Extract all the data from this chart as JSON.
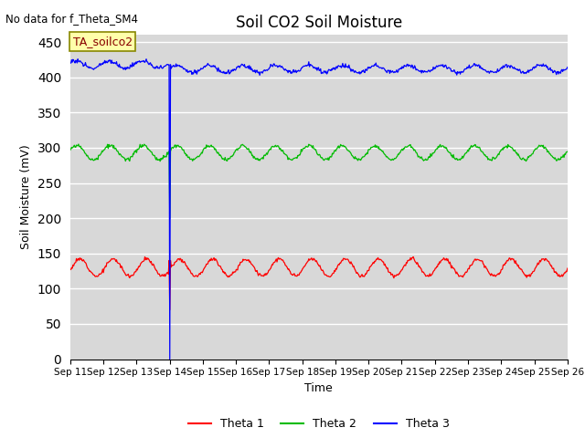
{
  "title": "Soil CO2 Soil Moisture",
  "no_data_text": "No data for f_Theta_SM4",
  "annotation_box": "TA_soilco2",
  "xlabel": "Time",
  "ylabel": "Soil Moisture (mV)",
  "ylim": [
    0,
    460
  ],
  "yticks": [
    0,
    50,
    100,
    150,
    200,
    250,
    300,
    350,
    400,
    450
  ],
  "xticklabels": [
    "Sep 11",
    "Sep 12",
    "Sep 13",
    "Sep 14",
    "Sep 15",
    "Sep 16",
    "Sep 17",
    "Sep 18",
    "Sep 19",
    "Sep 20",
    "Sep 21",
    "Sep 22",
    "Sep 23",
    "Sep 24",
    "Sep 25",
    "Sep 26"
  ],
  "background_color": "#d8d8d8",
  "grid_color": "#ffffff",
  "fig_background": "#ffffff",
  "theta1_base": 130,
  "theta1_amp": 12,
  "theta2_base": 293,
  "theta2_amp": 10,
  "theta3_base_pre": 418,
  "theta3_base_post": 412,
  "theta3_amp": 5,
  "line_colors": [
    "#ff0000",
    "#00bb00",
    "#0000ff"
  ],
  "legend_labels": [
    "Theta 1",
    "Theta 2",
    "Theta 3"
  ],
  "spike_day": 3.0
}
